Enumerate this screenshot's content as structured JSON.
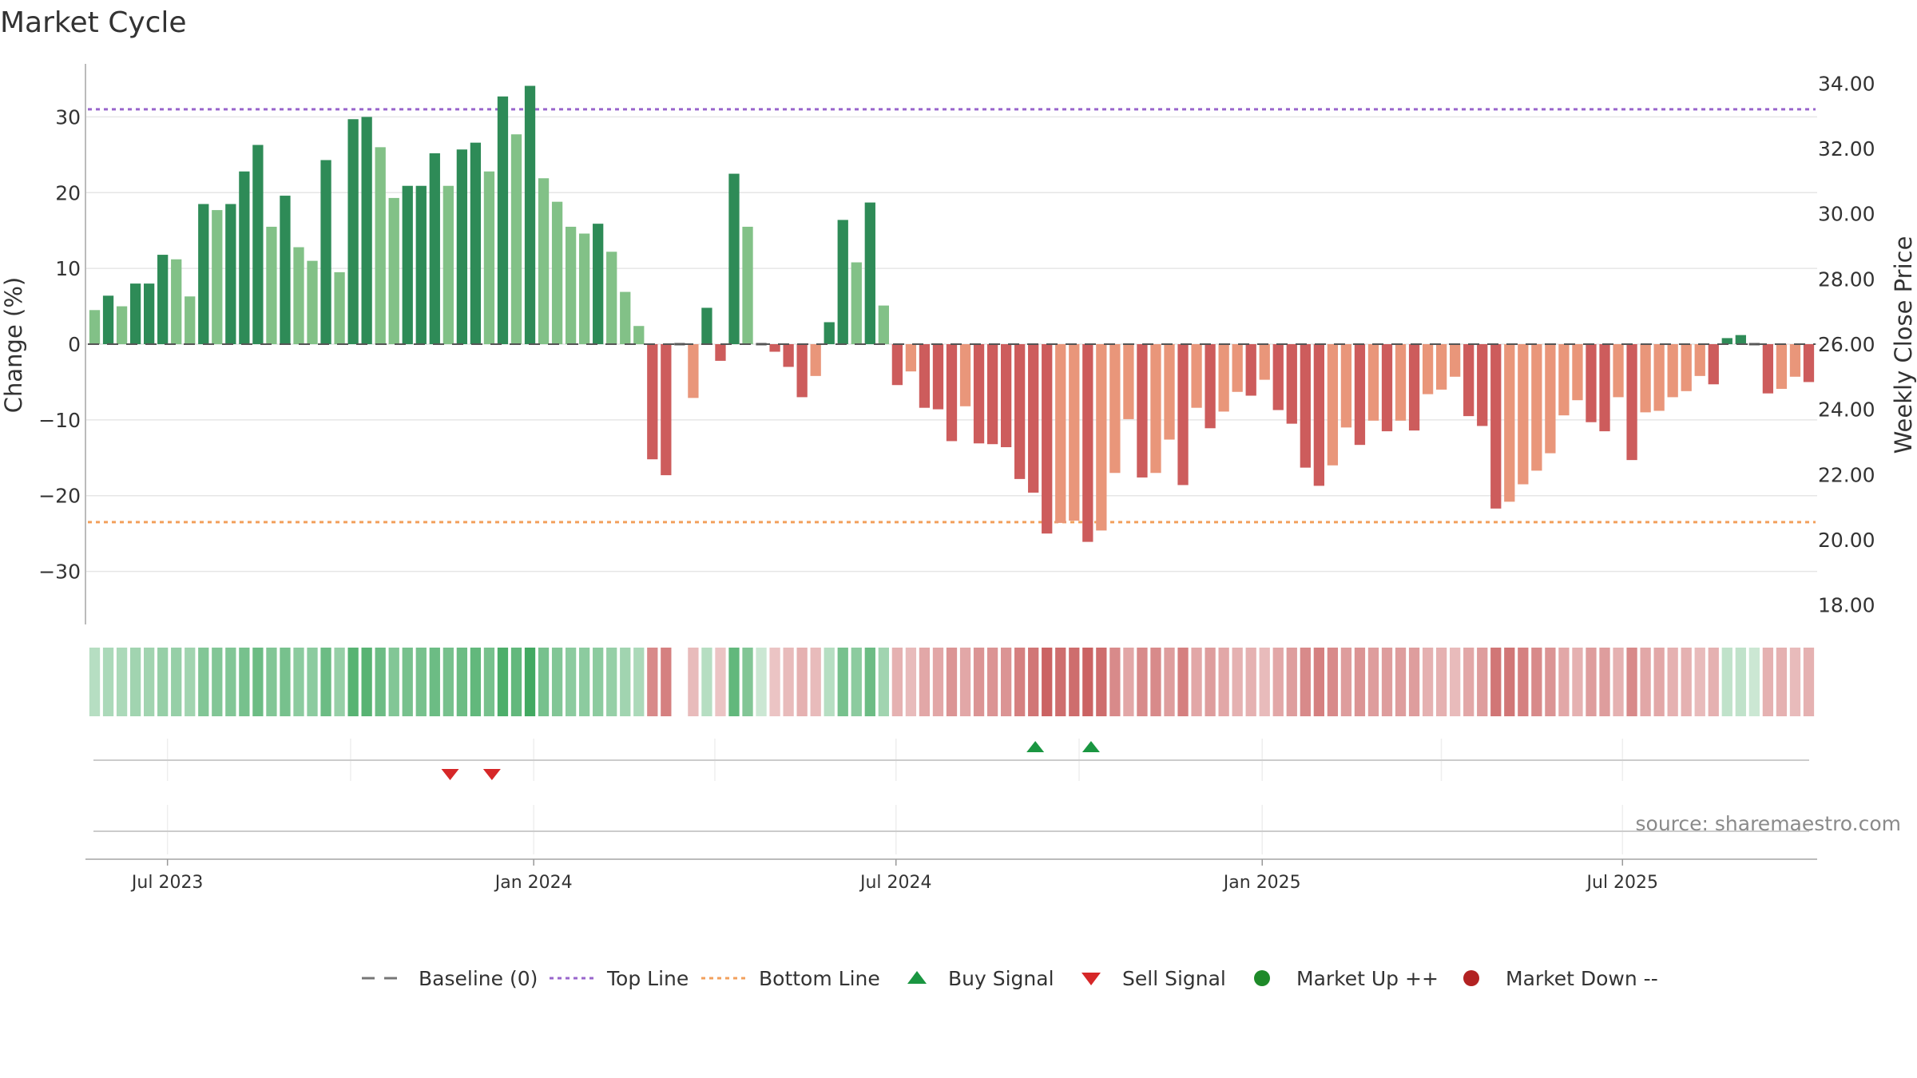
{
  "chart_data": {
    "type": "bar",
    "title": "Market Cycle",
    "ylabel_left": "Change (%)",
    "ylabel_right": "Weekly Close Price",
    "ylim_left": [
      -37,
      37
    ],
    "ylim_right": [
      17.4,
      34.6
    ],
    "yticks_left": [
      30,
      20,
      10,
      0,
      -10,
      -20,
      -30
    ],
    "yticks_left_labels": [
      "30",
      "20",
      "10",
      "0",
      "−10",
      "−20",
      "−30"
    ],
    "yticks_right": [
      34,
      32,
      30,
      28,
      26,
      24,
      22,
      20,
      18
    ],
    "yticks_right_labels": [
      "34.00",
      "32.00",
      "30.00",
      "28.00",
      "26.00",
      "24.00",
      "22.00",
      "20.00",
      "18.00"
    ],
    "x_start": "2023-05-22",
    "x_end": "2025-10-06",
    "xticks": [
      {
        "date": "2023-07-01",
        "label": "Jul 2023"
      },
      {
        "date": "2024-01-01",
        "label": "Jan 2024"
      },
      {
        "date": "2024-07-01",
        "label": "Jul 2024"
      },
      {
        "date": "2025-01-01",
        "label": "Jan 2025"
      },
      {
        "date": "2025-07-01",
        "label": "Jul 2025"
      }
    ],
    "top_line": 31,
    "bottom_line": -23.5,
    "baseline": 0,
    "values": [
      4.5,
      6.4,
      5,
      8,
      8,
      11.8,
      11.2,
      6.3,
      18.5,
      17.7,
      18.5,
      22.8,
      26.3,
      15.5,
      19.6,
      12.8,
      11,
      24.3,
      9.5,
      29.7,
      30,
      26,
      19.3,
      20.9,
      20.9,
      25.2,
      20.9,
      25.7,
      26.6,
      22.8,
      32.7,
      27.7,
      34.1,
      21.9,
      18.8,
      15.5,
      14.6,
      15.9,
      12.2,
      6.9,
      2.4,
      -15.2,
      -17.3,
      0,
      -7.1,
      4.8,
      -2.2,
      22.5,
      15.5,
      0,
      -1,
      -3,
      -7,
      -4.2,
      2.9,
      16.4,
      10.8,
      18.7,
      5.1,
      -5.4,
      -3.6,
      -8.4,
      -8.6,
      -12.8,
      -8.2,
      -13.1,
      -13.2,
      -13.6,
      -17.8,
      -19.6,
      -25,
      -23.6,
      -23.3,
      -26.1,
      -24.6,
      -17,
      -9.9,
      -17.6,
      -17,
      -12.6,
      -18.6,
      -8.4,
      -11.1,
      -8.9,
      -6.3,
      -6.8,
      -4.7,
      -8.7,
      -10.5,
      -16.3,
      -18.7,
      -16,
      -11,
      -13.3,
      -10.1,
      -11.5,
      -10.1,
      -11.4,
      -6.6,
      -6,
      -4.3,
      -9.5,
      -10.8,
      -21.7,
      -20.8,
      -18.5,
      -16.7,
      -14.4,
      -9.4,
      -7.4,
      -10.3,
      -11.5,
      -7,
      -15.3,
      -9,
      -8.8,
      -7,
      -6.2,
      -4.2,
      -5.3,
      0.8,
      1.2,
      0,
      -6.5,
      -5.9,
      -4.3,
      -5
    ],
    "bar_shade": [
      "L",
      "D",
      "L",
      "D",
      "D",
      "D",
      "L",
      "L",
      "D",
      "L",
      "D",
      "D",
      "D",
      "L",
      "D",
      "L",
      "L",
      "D",
      "L",
      "D",
      "D",
      "L",
      "L",
      "D",
      "D",
      "D",
      "L",
      "D",
      "D",
      "L",
      "D",
      "L",
      "D",
      "L",
      "L",
      "L",
      "L",
      "D",
      "L",
      "L",
      "L",
      "D",
      "D",
      "L",
      "L",
      "D",
      "D",
      "D",
      "L",
      "L",
      "D",
      "D",
      "D",
      "L",
      "D",
      "D",
      "L",
      "D",
      "L",
      "D",
      "L",
      "D",
      "D",
      "D",
      "L",
      "D",
      "D",
      "D",
      "D",
      "D",
      "D",
      "L",
      "L",
      "D",
      "L",
      "L",
      "L",
      "D",
      "L",
      "L",
      "D",
      "L",
      "D",
      "L",
      "L",
      "D",
      "L",
      "D",
      "D",
      "D",
      "D",
      "L",
      "L",
      "D",
      "L",
      "D",
      "L",
      "D",
      "L",
      "L",
      "L",
      "D",
      "D",
      "D",
      "L",
      "L",
      "L",
      "L",
      "L",
      "L",
      "D",
      "D",
      "L",
      "D",
      "L",
      "L",
      "L",
      "L",
      "L",
      "D",
      "D",
      "D",
      "L",
      "D",
      "L",
      "L",
      "D"
    ],
    "heat_strip": [
      0.35,
      0.4,
      0.4,
      0.45,
      0.45,
      0.5,
      0.5,
      0.45,
      0.6,
      0.6,
      0.6,
      0.65,
      0.7,
      0.6,
      0.65,
      0.55,
      0.55,
      0.7,
      0.5,
      0.8,
      0.8,
      0.7,
      0.6,
      0.65,
      0.65,
      0.7,
      0.65,
      0.7,
      0.75,
      0.65,
      0.85,
      0.75,
      0.9,
      0.65,
      0.6,
      0.55,
      0.55,
      0.55,
      0.5,
      0.45,
      0.4,
      -0.6,
      -0.65,
      null,
      -0.35,
      0.35,
      -0.3,
      0.75,
      0.6,
      0.25,
      -0.3,
      -0.35,
      -0.4,
      -0.35,
      0.35,
      0.65,
      0.55,
      0.7,
      0.45,
      -0.4,
      -0.35,
      -0.45,
      -0.45,
      -0.55,
      -0.45,
      -0.55,
      -0.55,
      -0.55,
      -0.65,
      -0.7,
      -0.8,
      -0.75,
      -0.75,
      -0.8,
      -0.75,
      -0.6,
      -0.45,
      -0.6,
      -0.6,
      -0.5,
      -0.65,
      -0.45,
      -0.5,
      -0.45,
      -0.4,
      -0.4,
      -0.35,
      -0.45,
      -0.5,
      -0.6,
      -0.65,
      -0.6,
      -0.5,
      -0.55,
      -0.5,
      -0.5,
      -0.5,
      -0.5,
      -0.4,
      -0.4,
      -0.35,
      -0.45,
      -0.5,
      -0.7,
      -0.7,
      -0.65,
      -0.6,
      -0.55,
      -0.45,
      -0.4,
      -0.5,
      -0.5,
      -0.4,
      -0.6,
      -0.45,
      -0.45,
      -0.4,
      -0.4,
      -0.35,
      -0.4,
      0.3,
      0.3,
      0.25,
      -0.4,
      -0.4,
      -0.35,
      -0.4
    ],
    "buy_signal_dates": [
      "2024-09-09",
      "2024-10-07"
    ],
    "sell_signal_dates": [
      "2023-11-20",
      "2023-12-11"
    ],
    "source_text": "source: sharemaestro.com",
    "legend": [
      {
        "label": "Baseline (0)",
        "marker": "dash",
        "color": "#777777"
      },
      {
        "label": "Top Line",
        "marker": "dotted",
        "color": "#9966cc"
      },
      {
        "label": "Bottom Line",
        "marker": "dotted",
        "color": "#f2a05c"
      },
      {
        "label": "Buy Signal",
        "marker": "triangle-up",
        "color": "#1a9641"
      },
      {
        "label": "Sell Signal",
        "marker": "triangle-down",
        "color": "#d62728"
      },
      {
        "label": "Market Up ++",
        "marker": "circle",
        "color": "#1e8a29"
      },
      {
        "label": "Market Down --",
        "marker": "circle",
        "color": "#b22222"
      }
    ],
    "colors": {
      "pos_dark": "#2e8b57",
      "pos_light": "#82c187",
      "neg_dark": "#cd5c5c",
      "neg_light": "#e9967a",
      "top_line": "#9966cc",
      "bottom_line": "#f2a05c",
      "grid": "#e6e6e6",
      "axis": "#bbbbbb"
    }
  }
}
